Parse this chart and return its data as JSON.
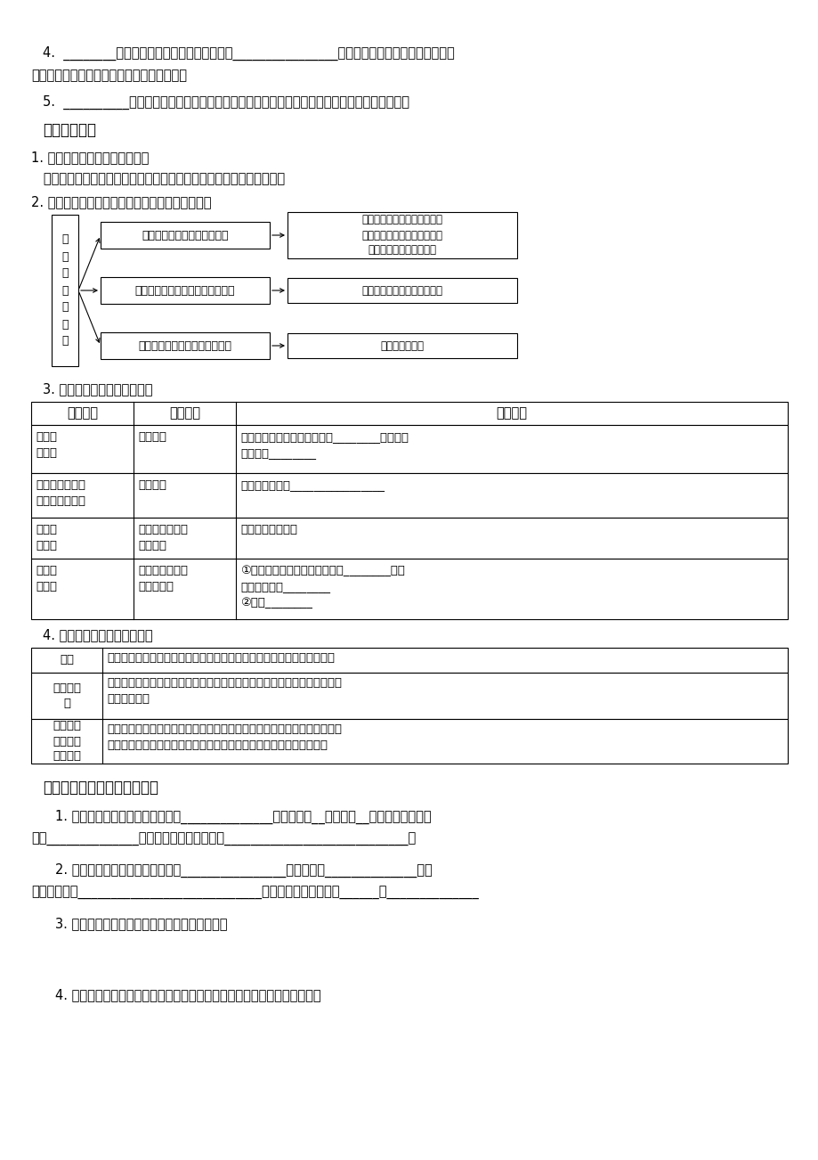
{
  "bg_color": "#ffffff",
  "line4a": "4.  ________也会成为重要的工业区位因素。在________________的影响下，用地、交通、基础设施",
  "line4b": "等区位因素都会发生有利于投资办厂的变化。",
  "line5": "5.  __________的理念和心理因素，也成为重要的工业区位因素之一，有时甚至会成为主导因素。",
  "sec_title": "【重难剖析】",
  "p1_title": "1. 影响工业区位因素变化的因素",
  "p1_content": "   科学技术的进步、市场需求的变化、社会经济的发展、环境的变化等。",
  "p2_title": "2. 科学技术的进步对其他区位因素及其作用的影响",
  "left_label": "科\n学\n技\n术\n的\n进\n步",
  "mid_boxes": [
    "交通条件改善和运输能力提高",
    "工业生产机械化、自动化水平提高",
    "工业产业对信息的依赖程度提高"
  ],
  "right_boxes": [
    "对动力和原料产地依赖减弱，\n缩短了生产地和消费地之间的\n距离，区位选择更灵活。",
    "促进生产规模扩大，工业集聚",
    "对市场依赖加强"
  ],
  "p3_title": "3. 环境因素对工业区位的影响",
  "t1_h": [
    "工业部门",
    "污染类型",
    "区位选择"
  ],
  "t1_c1": [
    "水泥厂\n酿造厂",
    "印染厂、造纸厂\n电镀厂、皮革厂",
    "化工厂\n炼油厂",
    "发电厂\n钢铁厂"
  ],
  "t1_c2": [
    "污染空气",
    "污染水源",
    "既污染水源，又\n污染大气",
    "空气污染，固体\n废弃物污染"
  ],
  "t1_c3": [
    "工厂设置在居民区最小风频的________或与常年\n盛行风向________",
    "污水排放口远离________________",
    "以上两点均应考虑",
    "①工厂设置在居民区最小风频的________或与\n常年盛行风向________\n②远离________"
  ],
  "p4_title": "4. 社会因素对工业区位的影响",
  "t2_c1": [
    "政策",
    "企业决策\n者",
    "文化传统\n消费习惯\n客户类型"
  ],
  "t2_c2": [
    "优惠政策会影响用地、交通、基础设施等区位因素，使之有利于投资办厂",
    "其理念和心理因素，有时会成为主导因素。如台港澳同胞、海外侨胞回国、\n回乡投资建厂",
    "因文化传统、消费习惯的地区差异，对同类产品的具体要求不同；而不同的\n客户类型如年龄、性别、职业、受教育水平对同类产品的具体要求不同"
  ],
  "act_title": "【活动导引】或【案例剖析】",
  "q1a": "1. 鞍钢的区位因素分析：煤炭来自______________；铁矿来自__当地供应__；早期消费市场主",
  "q1b": "要为______________等，其他的区位因素还有____________________________。",
  "q2a": "2. 宝钢的区位因素分析：煤炭来自________________；铁矿来自______________；销",
  "q2b": "售市场主要为____________________________；其他的区位因素还有______、______________",
  "q3": "3. 鞍钢和宝钢在区位选择上最大的不同是什么？",
  "q4": "4. 大型钢铁企业转向沿海钢铁消费区布局，科学技术在其中起了什么作用？"
}
